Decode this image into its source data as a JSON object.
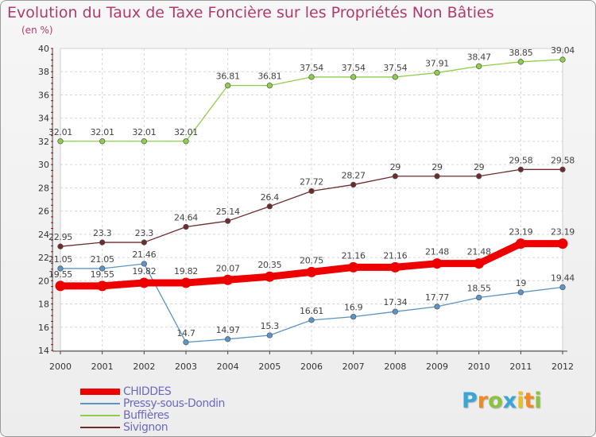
{
  "header": {
    "title": "Evolution du Taux de Taxe Foncière sur les Propriétés Non Bâties",
    "subtitle": "(en %)"
  },
  "chart_data": {
    "type": "line",
    "title": "Evolution du Taux de Taxe Foncière sur les Propriétés Non Bâties",
    "ylabel": "(en %)",
    "xlabel": "",
    "ylim": [
      14,
      40
    ],
    "yticks": [
      14,
      16,
      18,
      20,
      22,
      24,
      26,
      28,
      30,
      32,
      34,
      36,
      38,
      40
    ],
    "grid": true,
    "legend_position": "bottom-left",
    "x": [
      "2000",
      "2001",
      "2002",
      "2003",
      "2004",
      "2005",
      "2006",
      "2007",
      "2008",
      "2009",
      "2010",
      "2011",
      "2012"
    ],
    "series": [
      {
        "name": "CHIDDES",
        "color": "#ee0000",
        "values": [
          19.55,
          19.55,
          19.82,
          19.82,
          20.07,
          20.35,
          20.75,
          21.16,
          21.16,
          21.48,
          21.48,
          23.19,
          23.19
        ],
        "labels": [
          "19.55",
          "19.55",
          "19.82",
          "19.82",
          "20.07",
          "20.35",
          "20.75",
          "21.16",
          "21.16",
          "21.48",
          "21.48",
          "23.19",
          "23.19"
        ]
      },
      {
        "name": "Pressy-sous-Dondin",
        "color": "#5a94c8",
        "values": [
          21.05,
          21.05,
          21.46,
          14.7,
          14.97,
          15.3,
          16.61,
          16.9,
          17.34,
          17.77,
          18.55,
          19,
          19.44
        ],
        "labels": [
          "21.05",
          "21.05",
          "21.46",
          "14.7",
          "14.97",
          "15.3",
          "16.61",
          "16.9",
          "17.34",
          "17.77",
          "18.55",
          "19",
          "19.44"
        ]
      },
      {
        "name": "Buffières",
        "color": "#8ecf4a",
        "values": [
          32.01,
          32.01,
          32.01,
          32.01,
          36.81,
          36.81,
          37.54,
          37.54,
          37.54,
          37.91,
          38.47,
          38.85,
          39.04
        ],
        "labels": [
          "32.01",
          "32.01",
          "32.01",
          "32.01",
          "36.81",
          "36.81",
          "37.54",
          "37.54",
          "37.54",
          "37.91",
          "38.47",
          "38.85",
          "39.04"
        ]
      },
      {
        "name": "Sivignon",
        "color": "#6e2b2e",
        "values": [
          22.95,
          23.3,
          23.3,
          24.64,
          25.14,
          26.4,
          27.72,
          28.27,
          29,
          29,
          29,
          29.58,
          29.58
        ],
        "labels": [
          "22.95",
          "23.3",
          "23.3",
          "24.64",
          "25.14",
          "26.4",
          "27.72",
          "28.27",
          "29",
          "29",
          "29",
          "29.58",
          "29.58"
        ]
      }
    ]
  },
  "logo": {
    "letters": [
      "P",
      "r",
      "o",
      "x",
      "i",
      "t",
      "i"
    ],
    "colors": [
      "#3aa6d8",
      "#f08a24",
      "#8ac43f",
      "#3aa6d8",
      "#e8c020",
      "#f08a24",
      "#8ac43f"
    ]
  }
}
